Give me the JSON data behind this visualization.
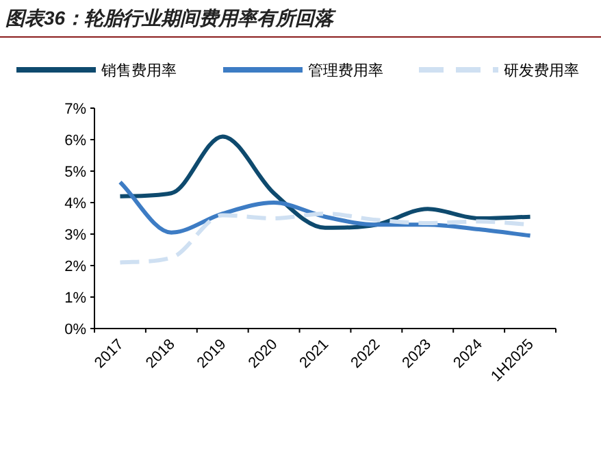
{
  "chart_data": {
    "type": "line",
    "title": "图表36：轮胎行业期间费用率有所回落",
    "categories": [
      "2017",
      "2018",
      "2019",
      "2020",
      "2021",
      "2022",
      "2023",
      "2024",
      "1H2025"
    ],
    "series": [
      {
        "name": "销售费用率",
        "color": "#0e4a6e",
        "values": [
          4.2,
          4.3,
          6.1,
          4.3,
          3.2,
          3.3,
          3.8,
          3.5,
          3.55
        ]
      },
      {
        "name": "管理费用率",
        "color": "#3d7cc4",
        "values": [
          4.65,
          3.05,
          3.65,
          4.0,
          3.55,
          3.3,
          3.3,
          3.15,
          2.95
        ]
      },
      {
        "name": "研发费用率",
        "color": "#cfe0f2",
        "line_style": "dashed",
        "values": [
          2.1,
          2.25,
          3.6,
          3.5,
          3.65,
          3.45,
          3.35,
          3.4,
          3.3
        ]
      }
    ],
    "ylim": [
      0,
      7
    ],
    "yticks": [
      {
        "value": 0,
        "label": "0%"
      },
      {
        "value": 1,
        "label": "1%"
      },
      {
        "value": 2,
        "label": "2%"
      },
      {
        "value": 3,
        "label": "3%"
      },
      {
        "value": 4,
        "label": "4%"
      },
      {
        "value": 5,
        "label": "5%"
      },
      {
        "value": 6,
        "label": "6%"
      },
      {
        "value": 7,
        "label": "7%"
      }
    ],
    "legend": "top",
    "grid": false,
    "marker": "none"
  }
}
